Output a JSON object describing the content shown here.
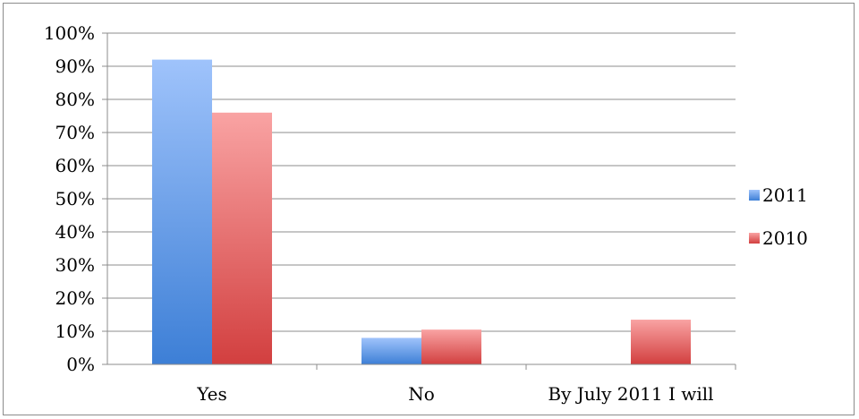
{
  "chart_data": {
    "type": "bar",
    "categories": [
      "Yes",
      "No",
      "By July 2011 I will"
    ],
    "series": [
      {
        "name": "2011",
        "values": [
          92,
          8,
          0
        ],
        "color_light": "#9fc3fb",
        "color_dark": "#3d7fd6"
      },
      {
        "name": "2010",
        "values": [
          76,
          10.5,
          13.5
        ],
        "color_light": "#f9a3a3",
        "color_dark": "#d23f3f"
      }
    ],
    "ylim": [
      0,
      100
    ],
    "yticks": [
      "0%",
      "10%",
      "20%",
      "30%",
      "40%",
      "50%",
      "60%",
      "70%",
      "80%",
      "90%",
      "100%"
    ],
    "grid": true,
    "legend_position": "right",
    "title": "",
    "xlabel": "",
    "ylabel": ""
  }
}
